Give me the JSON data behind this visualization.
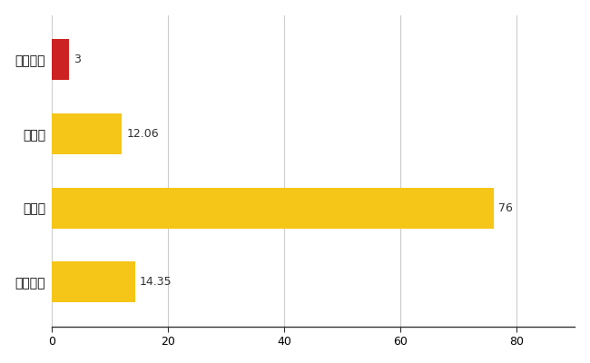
{
  "categories": [
    "宇多津町",
    "県平均",
    "県最大",
    "全国平均"
  ],
  "values": [
    3,
    12.06,
    76,
    14.35
  ],
  "bar_colors": [
    "#cc2222",
    "#f5c518",
    "#f5c518",
    "#f5c518"
  ],
  "value_labels": [
    "3",
    "12.06",
    "76",
    "14.35"
  ],
  "xlim": [
    0,
    90
  ],
  "xticks": [
    0,
    20,
    40,
    60,
    80
  ],
  "background_color": "#ffffff",
  "grid_color": "#cccccc",
  "bar_height": 0.55,
  "label_fontsize": 9,
  "tick_fontsize": 9,
  "ytick_fontsize": 10
}
